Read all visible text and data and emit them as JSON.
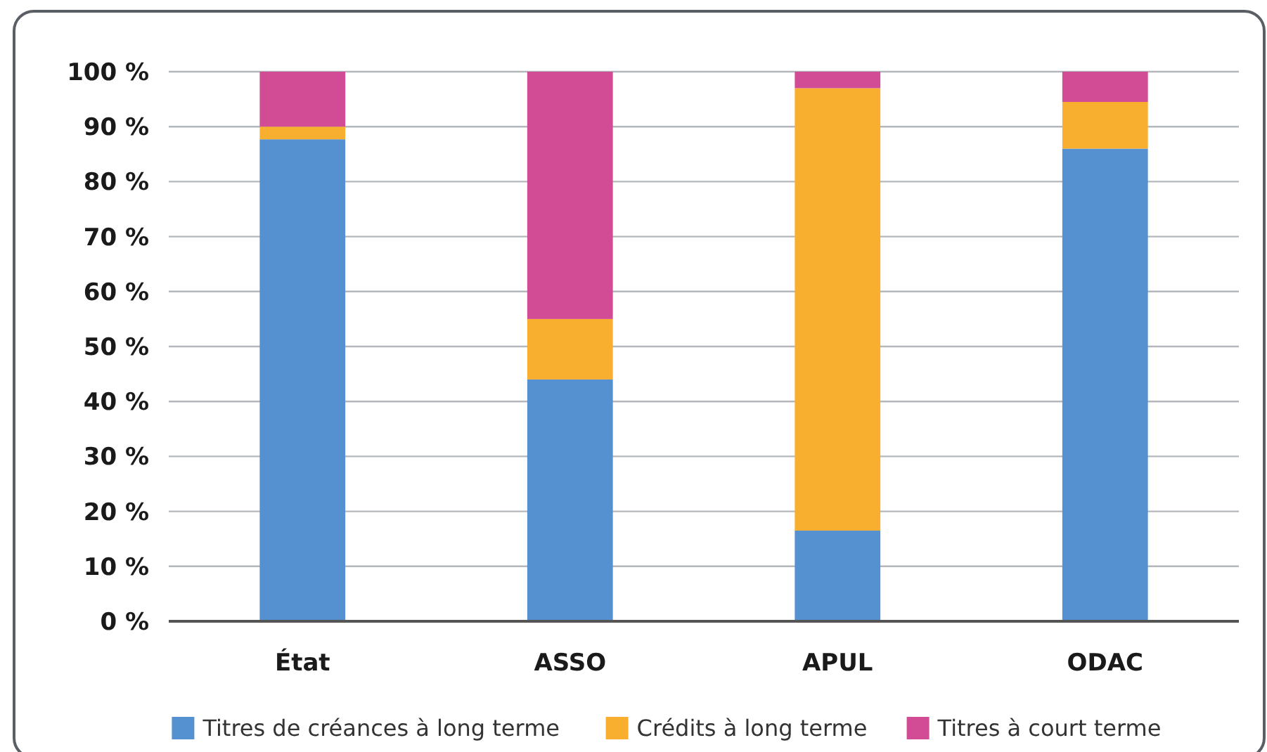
{
  "chart_data": {
    "type": "bar",
    "stacked": true,
    "categories": [
      "État",
      "ASSO",
      "APUL",
      "ODAC"
    ],
    "series": [
      {
        "name": "Titres de créances à long terme",
        "color": "#5591d0",
        "values": [
          87.7,
          44,
          16.5,
          86
        ]
      },
      {
        "name": "Crédits à long terme",
        "color": "#f8ae2f",
        "values": [
          2.3,
          11,
          80.5,
          8.5
        ]
      },
      {
        "name": "Titres à court terme",
        "color": "#d24b95",
        "values": [
          10,
          45,
          3,
          5.5
        ]
      }
    ],
    "ylim": [
      0,
      100
    ],
    "yticks": [
      {
        "value": 0,
        "label": "0 %"
      },
      {
        "value": 10,
        "label": "10 %"
      },
      {
        "value": 20,
        "label": "20 %"
      },
      {
        "value": 30,
        "label": "30 %"
      },
      {
        "value": 40,
        "label": "40 %"
      },
      {
        "value": 50,
        "label": "50 %"
      },
      {
        "value": 60,
        "label": "60 %"
      },
      {
        "value": 70,
        "label": "70 %"
      },
      {
        "value": 80,
        "label": "80 %"
      },
      {
        "value": 90,
        "label": "90 %"
      },
      {
        "value": 100,
        "label": "100 %"
      }
    ],
    "grid": "y",
    "legend": "bottom"
  }
}
